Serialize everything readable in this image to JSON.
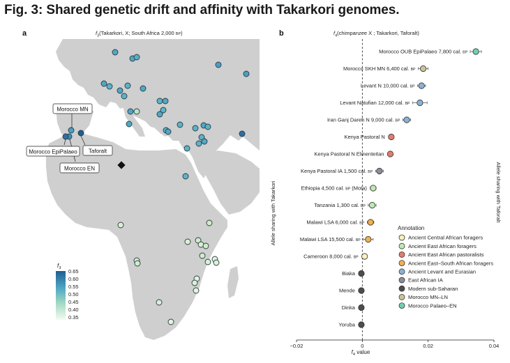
{
  "figure": {
    "title": "Fig. 3: Shared genetic drift and affinity with Takarkori genomes."
  },
  "panel_a": {
    "letter": "a",
    "subtitle_prefix": "f",
    "subtitle_sub": "3",
    "subtitle_rest": "(Takarkori, X; South Africa 2,000 ",
    "subtitle_bp": "BP",
    "subtitle_close": ")",
    "callouts": {
      "morocco_mn": "Morocco MN",
      "morocco_epipalaeo": "Morocco EpiPalaeo",
      "taforalt": "Taforalt",
      "morocco_en": "Morocco EN"
    },
    "legend": {
      "title_prefix": "f",
      "title_sub": "3",
      "ticks": [
        "0.65",
        "0.60",
        "0.55",
        "0.50",
        "0.45",
        "0.40",
        "0.35"
      ]
    },
    "colors": {
      "ocean": "#ffffff",
      "land": "#cfcfcf",
      "point_high": "#1f5e93",
      "point_mid": "#5ab4c8",
      "point_low": "#e8f6e6",
      "takarkori_marker": "#111111"
    }
  },
  "panel_b": {
    "letter": "b",
    "subtitle_prefix": "f",
    "subtitle_sub": "4",
    "subtitle_rest": "(chimpanzee X ; Takarkori, Taforalt)",
    "left_axis_label": "Allele sharing with Takarkori",
    "right_axis_label": "Allele sharing with Taforalt",
    "x_axis_label_prefix": "f",
    "x_axis_label_sub": "4",
    "x_axis_label_rest": " value",
    "legend_title": "Annotation"
  },
  "chart_data": {
    "type": "scatter",
    "title": "",
    "xlabel": "f4 value",
    "ylabel": "",
    "xlim": [
      -0.02,
      0.04
    ],
    "xticks": [
      "−0.02",
      "0",
      "0.02",
      "0.04"
    ],
    "xtick_values": [
      -0.02,
      0,
      0.02,
      0.04
    ],
    "reference_line": 0,
    "annotations": [
      {
        "name": "Ancient Central African foragers",
        "color": "#f6f0c0"
      },
      {
        "name": "Ancient East African foragers",
        "color": "#bfe8b4"
      },
      {
        "name": "Ancient East African pastoralists",
        "color": "#e27d6e"
      },
      {
        "name": "Ancient East–South African foragers",
        "color": "#f2b04d"
      },
      {
        "name": "Ancient Levant and Eurasian",
        "color": "#8ab2d6"
      },
      {
        "name": "East African IA",
        "color": "#8e8e98"
      },
      {
        "name": "Modern sub-Saharan",
        "color": "#4d4d4d"
      },
      {
        "name": "Morocco MN–LN",
        "color": "#cbc49a"
      },
      {
        "name": "Morocco Palaeo–EN",
        "color": "#6dd1b2"
      }
    ],
    "points": [
      {
        "label": "Morocco OUB EpiPalaeo 7,800 cal.",
        "bp": "BP",
        "value": 0.0345,
        "err": 0.0017,
        "group": 8
      },
      {
        "label": "Morocco SKH MN 6,400 cal.",
        "bp": "BP",
        "value": 0.0185,
        "err": 0.0015,
        "group": 7
      },
      {
        "label": "Levant N 10,000 cal.",
        "bp": "BP",
        "value": 0.018,
        "err": 0.0012,
        "group": 4
      },
      {
        "label": "Levant Natufian 12,000 cal.",
        "bp": "BP",
        "value": 0.0175,
        "err": 0.0022,
        "group": 4
      },
      {
        "label": "Iran Ganj Dareh N 9,000 cal.",
        "bp": "BP",
        "value": 0.0135,
        "err": 0.0012,
        "group": 4
      },
      {
        "label": "Kenya Pastoral N",
        "bp": "",
        "value": 0.0088,
        "err": 0.0008,
        "group": 2
      },
      {
        "label": "Kenya Pastoral N Elmenteitan",
        "bp": "",
        "value": 0.0085,
        "err": 0.0008,
        "group": 2
      },
      {
        "label": "Kenya Pastoral IA 1,500 cal.",
        "bp": "BP",
        "value": 0.0052,
        "err": 0.0012,
        "group": 5
      },
      {
        "label": "Ethiopia 4,500 cal.",
        "bp": "BP",
        "suffix": " (Mota)",
        "value": 0.0033,
        "err": 0.0009,
        "group": 1
      },
      {
        "label": "Tanzania 1,300 cal.",
        "bp": "BP",
        "value": 0.003,
        "err": 0.0012,
        "group": 1
      },
      {
        "label": "Malawi LSA 6,000 cal.",
        "bp": "BP",
        "value": 0.0025,
        "err": 0.001,
        "group": 3
      },
      {
        "label": "Malawi LSA 15,500 cal.",
        "bp": "BP",
        "value": 0.0018,
        "err": 0.0015,
        "group": 3
      },
      {
        "label": "Cameroon 8,000 cal.",
        "bp": "BP",
        "value": 0.0007,
        "err": 0.0008,
        "group": 0
      },
      {
        "label": "Biaka",
        "bp": "",
        "value": -0.0003,
        "err": 0.0004,
        "group": 6
      },
      {
        "label": "Mende",
        "bp": "",
        "value": -0.0003,
        "err": 0.0004,
        "group": 6
      },
      {
        "label": "Dinka",
        "bp": "",
        "value": -0.0003,
        "err": 0.0004,
        "group": 6
      },
      {
        "label": "Yoruba",
        "bp": "",
        "value": -0.0003,
        "err": 0.0004,
        "group": 6
      }
    ]
  }
}
